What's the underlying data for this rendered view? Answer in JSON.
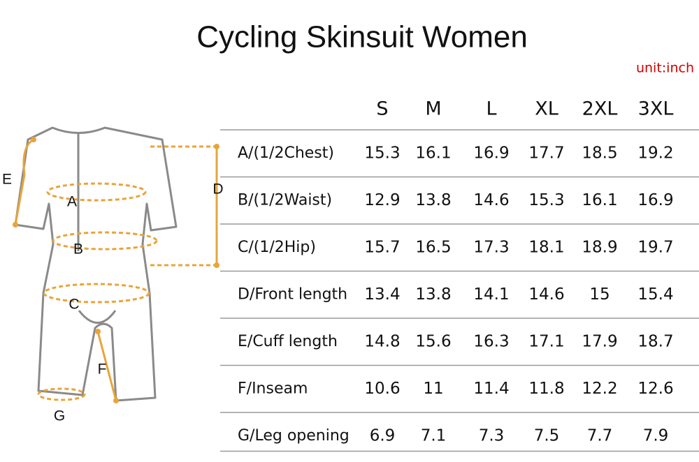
{
  "header": {
    "title": "Cycling Skinsuit Women",
    "unit": "unit:inch"
  },
  "diagram": {
    "labels": [
      "E",
      "A",
      "D",
      "B",
      "C",
      "F",
      "G"
    ]
  },
  "table": {
    "columns": [
      "S",
      "M",
      "L",
      "XL",
      "2XL",
      "3XL"
    ],
    "rows": [
      {
        "label": "A/(1/2Chest)",
        "values": [
          "15.3",
          "16.1",
          "16.9",
          "17.7",
          "18.5",
          "19.2"
        ]
      },
      {
        "label": "B/(1/2Waist)",
        "values": [
          "12.9",
          "13.8",
          "14.6",
          "15.3",
          "16.1",
          "16.9"
        ]
      },
      {
        "label": "C/(1/2Hip)",
        "values": [
          "15.7",
          "16.5",
          "17.3",
          "18.1",
          "18.9",
          "19.7"
        ]
      },
      {
        "label": "D/Front length",
        "values": [
          "13.4",
          "13.8",
          "14.1",
          "14.6",
          "15",
          "15.4"
        ]
      },
      {
        "label": "E/Cuff length",
        "values": [
          "14.8",
          "15.6",
          "16.3",
          "17.1",
          "17.9",
          "18.7"
        ]
      },
      {
        "label": "F/Inseam",
        "values": [
          "10.6",
          "11",
          "11.4",
          "11.8",
          "12.2",
          "12.6"
        ]
      },
      {
        "label": "G/Leg opening",
        "values": [
          "6.9",
          "7.1",
          "7.3",
          "7.5",
          "7.7",
          "7.9"
        ]
      }
    ]
  }
}
